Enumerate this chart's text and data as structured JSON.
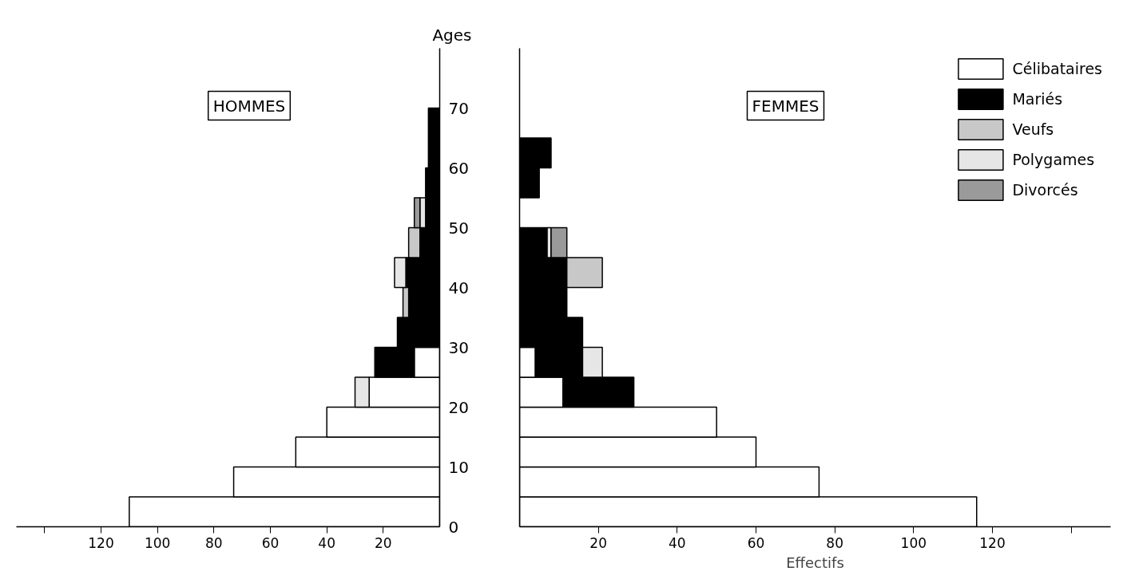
{
  "chart_data": [
    {
      "type": "bar",
      "title": "HOMMES",
      "ylabel": "Ages",
      "orientation": "horizontal",
      "stacked": true,
      "x": [
        2.5,
        7.5,
        12.5,
        17.5,
        22.5,
        27.5,
        32.5,
        37.5,
        42.5,
        47.5,
        52.5,
        57.5,
        62.5,
        67.5
      ],
      "series": [
        {
          "color": "#ffffff",
          "values": [
            110,
            73,
            51,
            40,
            25,
            9,
            null,
            null,
            null,
            null,
            null,
            null,
            null,
            null
          ]
        },
        {
          "color": "#000000",
          "values": [
            null,
            null,
            null,
            null,
            null,
            14,
            15,
            11,
            12,
            7,
            5,
            5,
            4,
            4
          ]
        },
        {
          "color": "#c8c8c8",
          "values": [
            null,
            null,
            null,
            null,
            null,
            null,
            null,
            2,
            null,
            4,
            null,
            null,
            null,
            null
          ]
        },
        {
          "color": "#e6e6e6",
          "values": [
            null,
            null,
            null,
            null,
            5,
            null,
            null,
            null,
            4,
            null,
            2,
            null,
            null,
            null
          ]
        },
        {
          "color": "#9a9a9a",
          "values": [
            null,
            null,
            null,
            null,
            null,
            null,
            null,
            null,
            null,
            null,
            2,
            null,
            null,
            null
          ]
        }
      ],
      "xlim": [
        150,
        0
      ],
      "xticks": [
        {
          "value": 140,
          "label": null
        },
        120,
        100,
        80,
        60,
        40,
        20
      ],
      "ylim": [
        0,
        80
      ],
      "yticks": [
        0,
        10,
        20,
        30,
        40,
        50,
        60,
        70
      ]
    },
    {
      "type": "bar",
      "title": "FEMMES",
      "xlabel": "Effectifs",
      "orientation": "horizontal",
      "stacked": true,
      "legend": "top right",
      "tick_labels": "x",
      "x": [
        2.5,
        7.5,
        12.5,
        17.5,
        22.5,
        27.5,
        32.5,
        37.5,
        42.5,
        47.5,
        52.5,
        57.5,
        62.5
      ],
      "series": [
        {
          "name": "Célibataires",
          "color": "#ffffff",
          "values": [
            116,
            76,
            60,
            50,
            11,
            4,
            null,
            null,
            null,
            null,
            null,
            null,
            null
          ]
        },
        {
          "name": "Mariés",
          "color": "#000000",
          "values": [
            null,
            null,
            null,
            null,
            18,
            12,
            16,
            12,
            12,
            7,
            null,
            5,
            8
          ]
        },
        {
          "name": "Veufs",
          "color": "#c8c8c8",
          "values": [
            null,
            null,
            null,
            null,
            null,
            null,
            null,
            null,
            9,
            null,
            null,
            null,
            null
          ]
        },
        {
          "name": "Polygames",
          "color": "#e6e6e6",
          "values": [
            null,
            null,
            null,
            null,
            null,
            5,
            null,
            null,
            null,
            1,
            null,
            null,
            null
          ]
        },
        {
          "name": "Divorcés",
          "color": "#9a9a9a",
          "values": [
            null,
            null,
            null,
            null,
            null,
            null,
            null,
            null,
            null,
            4,
            null,
            null,
            null
          ]
        }
      ],
      "xlim": [
        0,
        150
      ],
      "xticks": [
        20,
        40,
        60,
        80,
        100,
        120,
        {
          "value": 140,
          "label": null
        }
      ],
      "ylim": [
        0,
        80
      ],
      "yticks": [
        0,
        10,
        20,
        30,
        40,
        50,
        60,
        70
      ]
    }
  ]
}
